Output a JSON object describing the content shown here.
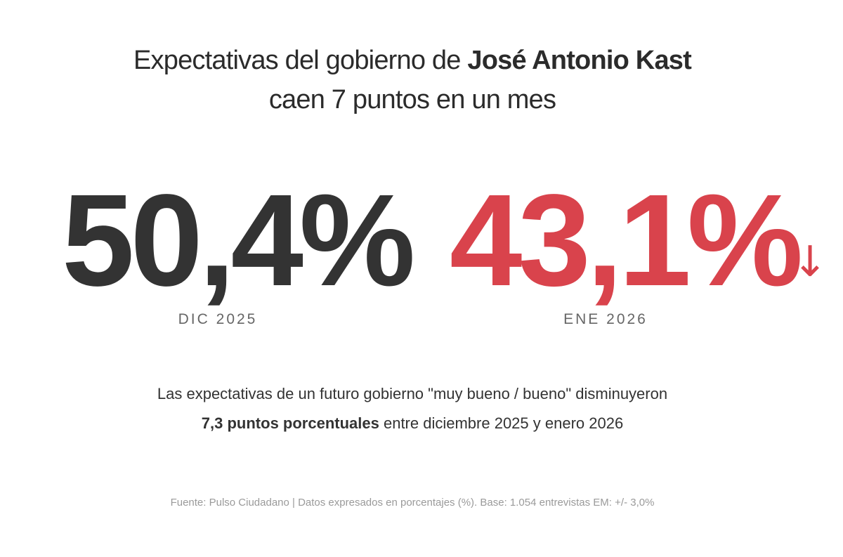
{
  "title": {
    "line1_prefix": "Expectativas del gobierno de ",
    "line1_bold": "José Antonio Kast",
    "line2": "caen 7 puntos en un mes"
  },
  "stats": [
    {
      "value": "50,4%",
      "period": "DIC 2025",
      "color": "#333333"
    },
    {
      "value": "43,1%",
      "period": "ENE 2026",
      "color": "#d9434c"
    }
  ],
  "trend_icon": "down-arrow-icon",
  "arrow_glyph": "↓",
  "description": {
    "line1": "Las expectativas de un futuro gobierno \"muy bueno / bueno\" disminuyeron",
    "line2_bold": "7,3 puntos porcentuales",
    "line2_rest": " entre diciembre 2025 y enero 2026"
  },
  "source": "Fuente: Pulso Ciudadano | Datos expresados en porcentajes (%). Base: 1.054 entrevistas EM: +/- 3,0%"
}
